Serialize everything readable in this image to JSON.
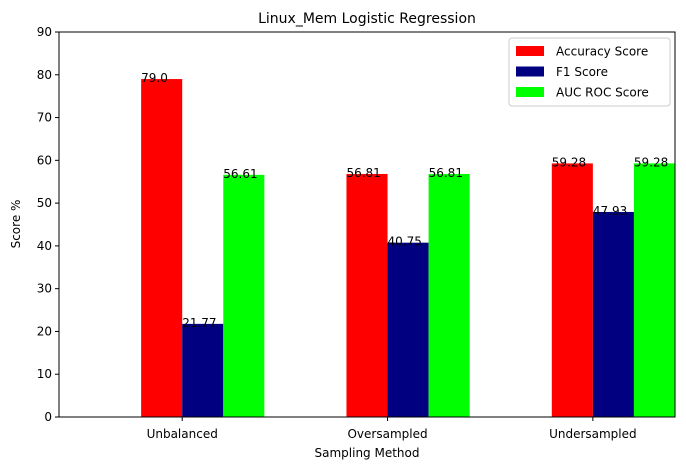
{
  "chart_data": {
    "type": "bar",
    "title": "Linux_Mem Logistic Regression",
    "xlabel": "Sampling Method",
    "ylabel": "Score %",
    "categories": [
      "Unbalanced",
      "Oversampled",
      "Undersampled"
    ],
    "series": [
      {
        "name": "Accuracy Score",
        "color": "#ff0000",
        "values": [
          79.0,
          56.81,
          59.28
        ],
        "labels": [
          "79.0",
          "56.81",
          "59.28"
        ]
      },
      {
        "name": "F1 Score",
        "color": "#000080",
        "values": [
          21.77,
          40.75,
          47.93
        ],
        "labels": [
          "21.77",
          "40.75",
          "47.93"
        ]
      },
      {
        "name": "AUC ROC Score",
        "color": "#00ff00",
        "values": [
          56.61,
          56.81,
          59.28
        ],
        "labels": [
          "56.61",
          "56.81",
          "59.28"
        ]
      }
    ],
    "ylim": [
      0,
      90
    ],
    "yticks": [
      0,
      10,
      20,
      30,
      40,
      50,
      60,
      70,
      80,
      90
    ],
    "grid": false,
    "legend": "top-right"
  }
}
